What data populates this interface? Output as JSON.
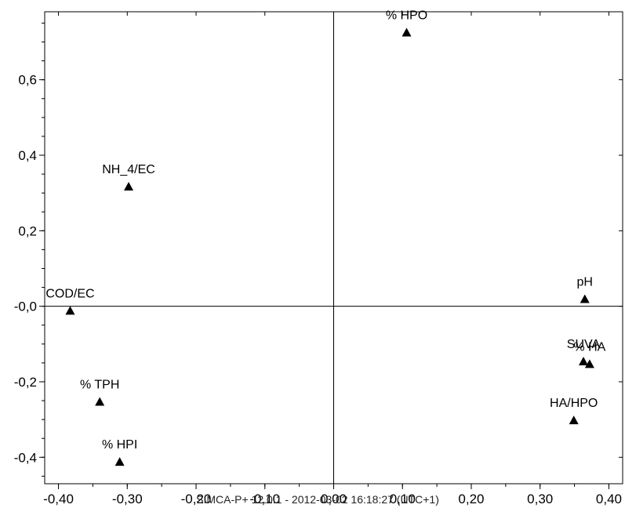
{
  "chart_data": {
    "type": "scatter",
    "title": "",
    "xlabel": "",
    "ylabel": "",
    "xlim": [
      -0.42,
      0.42
    ],
    "ylim": [
      -0.47,
      0.78
    ],
    "x_ticks": [
      -0.4,
      -0.3,
      -0.2,
      -0.1,
      0.0,
      0.1,
      0.2,
      0.3,
      0.4
    ],
    "x_tick_labels": [
      "-0,40",
      "-0,30",
      "-0,20",
      "-0,10",
      "0,00",
      "0,10",
      "0,20",
      "0,30",
      "0,40"
    ],
    "y_ticks": [
      -0.4,
      -0.2,
      0.0,
      0.2,
      0.4,
      0.6
    ],
    "y_tick_labels": [
      "-0,4",
      "-0,2",
      "-0,0",
      "0,2",
      "0,4",
      "0,6"
    ],
    "grid": false,
    "zero_lines": true,
    "marker": "triangle",
    "points": [
      {
        "label": "% HPO",
        "x": 0.106,
        "y": 0.725
      },
      {
        "label": "NH_4/EC",
        "x": -0.298,
        "y": 0.317
      },
      {
        "label": "COD/EC",
        "x": -0.383,
        "y": -0.012
      },
      {
        "label": "pH",
        "x": 0.365,
        "y": 0.019
      },
      {
        "label": "SUVA",
        "x": 0.363,
        "y": -0.146
      },
      {
        "label": "% HA",
        "x": 0.372,
        "y": -0.153
      },
      {
        "label": "HA/HPO",
        "x": 0.349,
        "y": -0.302
      },
      {
        "label": "% TPH",
        "x": -0.34,
        "y": -0.253
      },
      {
        "label": "% HPI",
        "x": -0.311,
        "y": -0.412
      }
    ],
    "footer": "SIMCA-P+ 12.0.1 - 2012-03-02 16:18:27 (UTC+1)"
  }
}
